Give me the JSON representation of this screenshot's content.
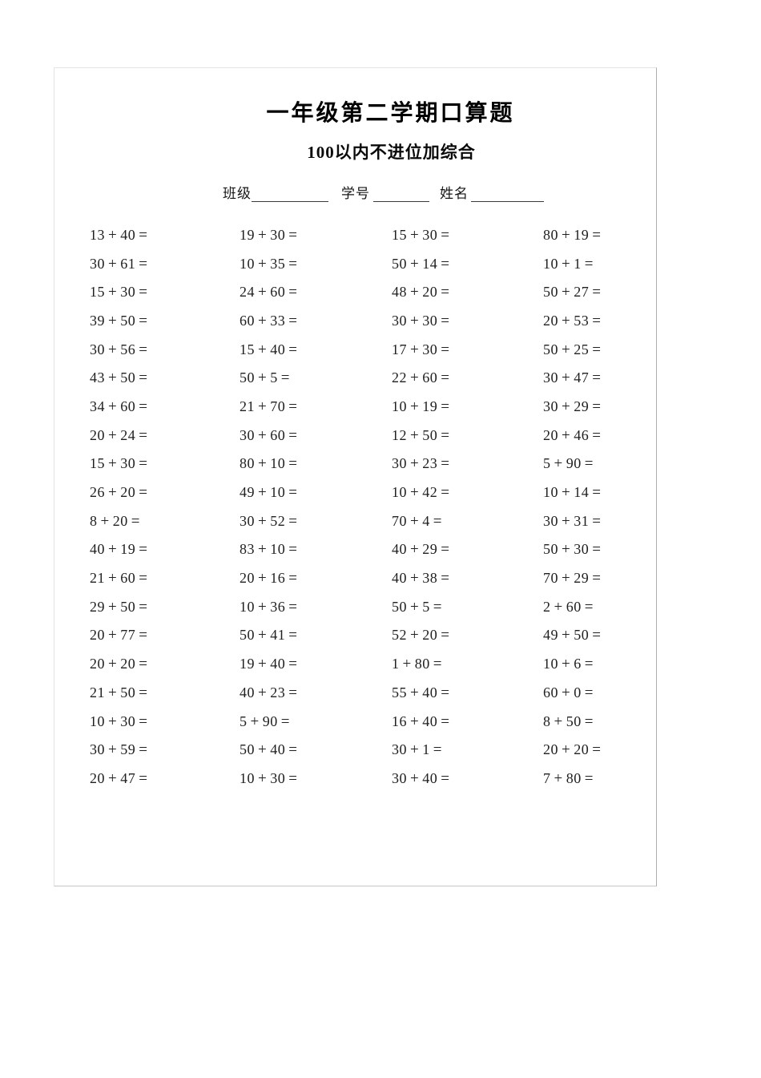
{
  "page": {
    "title": "一年级第二学期口算题",
    "subtitle": "100以内不进位加综合",
    "form": {
      "class_label": "班级",
      "student_id_label": "学号",
      "name_label": "姓名"
    },
    "problems": {
      "columns": 4,
      "rows": [
        [
          "13+40=",
          "19+30=",
          "15+30=",
          "80+19="
        ],
        [
          "30+61=",
          "10+35=",
          "50+14=",
          "10+1="
        ],
        [
          "15+30=",
          "24+60=",
          "48+20=",
          "50+27="
        ],
        [
          "39+50=",
          "60+33=",
          "30+30=",
          "20+53="
        ],
        [
          "30+56=",
          "15+40=",
          "17+30=",
          "50+25="
        ],
        [
          "43+50=",
          "50+5=",
          "22+60=",
          "30+47="
        ],
        [
          "34+60=",
          "21+70=",
          "10+19=",
          "30+29="
        ],
        [
          "20+24=",
          "30+60=",
          "12+50=",
          "20+46="
        ],
        [
          "15+30=",
          "80+10=",
          "30+23=",
          "5+90="
        ],
        [
          "26+20=",
          "49+10=",
          "10+42=",
          "10+14="
        ],
        [
          "8+20=",
          "30+52=",
          "70+4=",
          "30+31="
        ],
        [
          "40+19=",
          "83+10=",
          "40+29=",
          "50+30="
        ],
        [
          "21+60=",
          "20+16=",
          "40+38=",
          "70+29="
        ],
        [
          "29+50=",
          "10+36=",
          "50+5=",
          "2+60="
        ],
        [
          "20+77=",
          "50+41=",
          "52+20=",
          "49+50="
        ],
        [
          "20+20=",
          "19+40=",
          "1+80=",
          "10+6="
        ],
        [
          "21+50=",
          "40+23=",
          "55+40=",
          "60+0="
        ],
        [
          "10+30=",
          "5+90=",
          "16+40=",
          "8+50="
        ],
        [
          "30+59=",
          "50+40=",
          "30+1=",
          "20+20="
        ],
        [
          "20+47=",
          "10+30=",
          "30+40=",
          "7+80="
        ]
      ]
    }
  }
}
